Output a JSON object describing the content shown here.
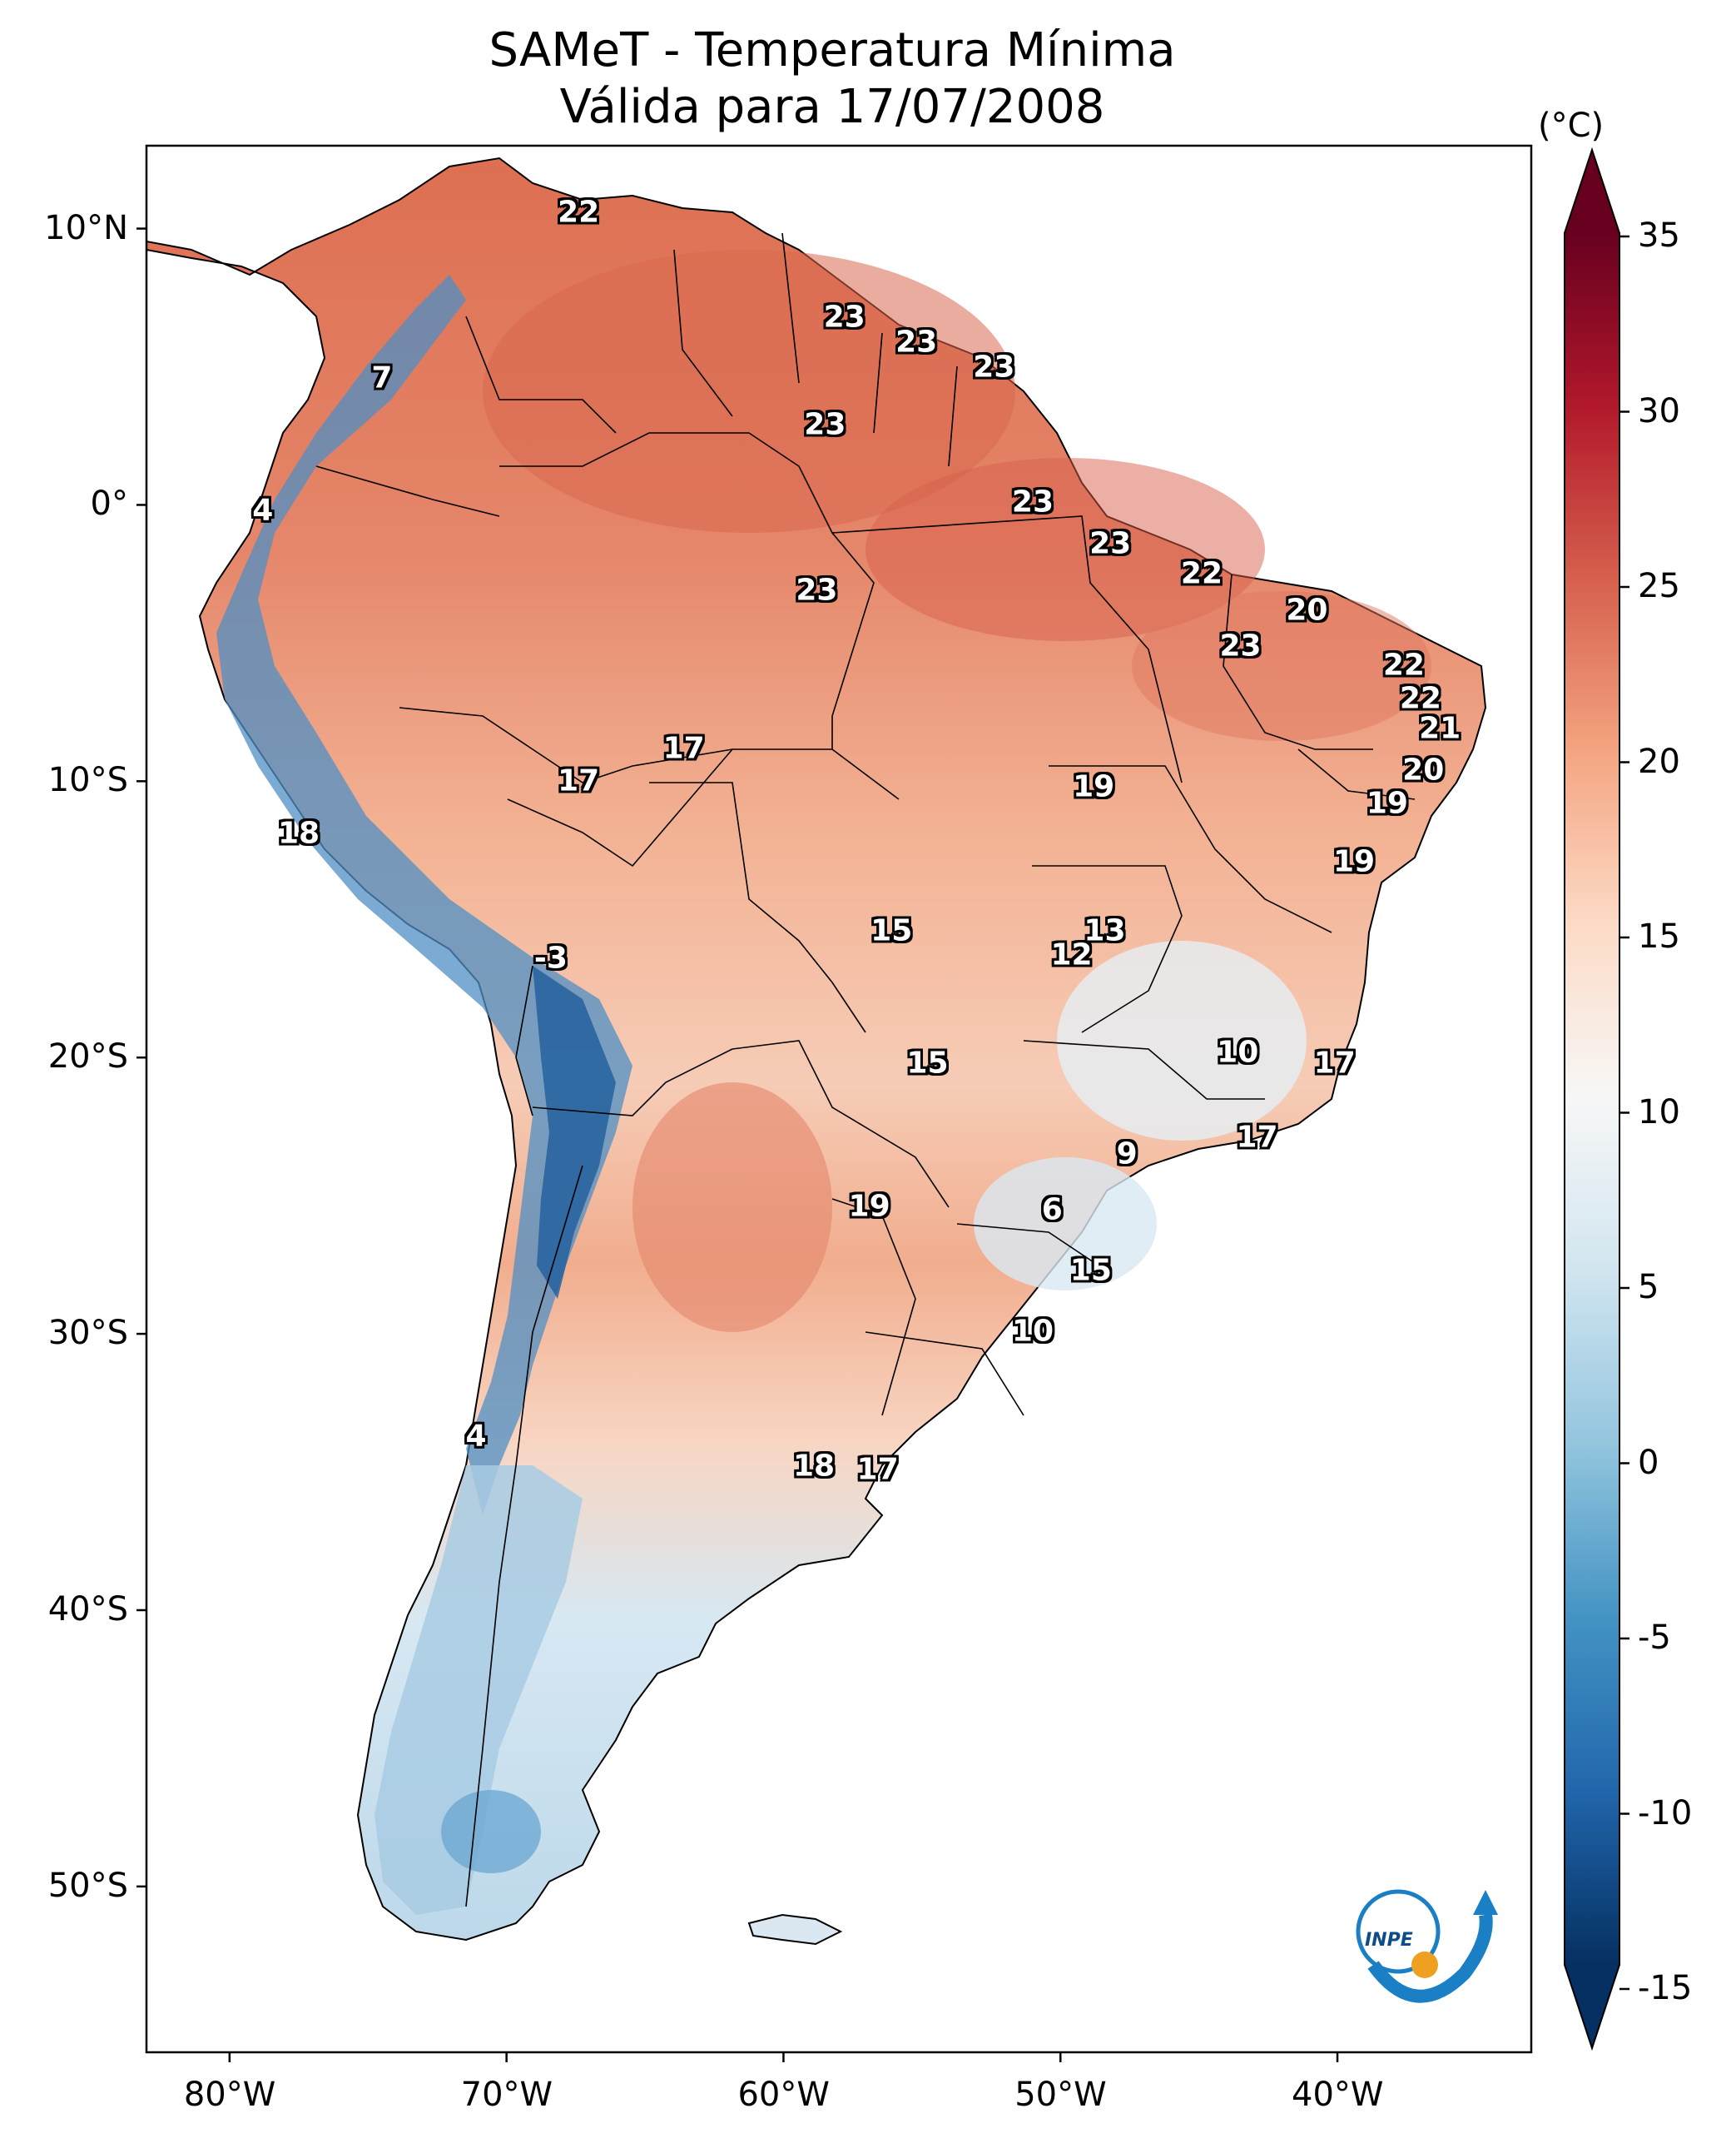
{
  "title": {
    "line1": "SAMeT - Temperatura Mínima",
    "line2": "Válida para 17/07/2008"
  },
  "map": {
    "extent_lon": [
      -83,
      -33
    ],
    "extent_lat": [
      -56,
      13
    ],
    "lat_ticks": [
      {
        "value": 10,
        "label": "10°N"
      },
      {
        "value": 0,
        "label": "0°"
      },
      {
        "value": -10,
        "label": "10°S"
      },
      {
        "value": -20,
        "label": "20°S"
      },
      {
        "value": -30,
        "label": "30°S"
      },
      {
        "value": -40,
        "label": "40°S"
      },
      {
        "value": -50,
        "label": "50°S"
      }
    ],
    "lon_ticks": [
      {
        "value": -80,
        "label": "80°W"
      },
      {
        "value": -70,
        "label": "70°W"
      },
      {
        "value": -60,
        "label": "60°W"
      },
      {
        "value": -50,
        "label": "50°W"
      },
      {
        "value": -40,
        "label": "40°W"
      }
    ],
    "temperature_labels": [
      {
        "lon": -67.4,
        "lat": 10.6,
        "label": "22"
      },
      {
        "lon": -74.5,
        "lat": 4.6,
        "label": "7"
      },
      {
        "lon": -78.8,
        "lat": -0.2,
        "label": "4"
      },
      {
        "lon": -57.8,
        "lat": 6.8,
        "label": "23"
      },
      {
        "lon": -55.2,
        "lat": 5.9,
        "label": "23"
      },
      {
        "lon": -52.4,
        "lat": 5.0,
        "label": "23"
      },
      {
        "lon": -58.5,
        "lat": 2.9,
        "label": "23"
      },
      {
        "lon": -51.0,
        "lat": 0.1,
        "label": "23"
      },
      {
        "lon": -48.2,
        "lat": -1.4,
        "label": "23"
      },
      {
        "lon": -44.9,
        "lat": -2.5,
        "label": "22"
      },
      {
        "lon": -58.8,
        "lat": -3.1,
        "label": "23"
      },
      {
        "lon": -41.1,
        "lat": -3.8,
        "label": "20"
      },
      {
        "lon": -43.5,
        "lat": -5.1,
        "label": "23"
      },
      {
        "lon": -37.6,
        "lat": -5.8,
        "label": "22"
      },
      {
        "lon": -37.0,
        "lat": -7.0,
        "label": "22"
      },
      {
        "lon": -36.3,
        "lat": -8.1,
        "label": "21"
      },
      {
        "lon": -36.9,
        "lat": -9.6,
        "label": "20"
      },
      {
        "lon": -63.6,
        "lat": -8.8,
        "label": "17"
      },
      {
        "lon": -67.4,
        "lat": -10.0,
        "label": "17"
      },
      {
        "lon": -48.8,
        "lat": -10.2,
        "label": "19"
      },
      {
        "lon": -38.2,
        "lat": -10.8,
        "label": "19"
      },
      {
        "lon": -77.5,
        "lat": -11.9,
        "label": "18"
      },
      {
        "lon": -39.4,
        "lat": -12.9,
        "label": "19"
      },
      {
        "lon": -56.1,
        "lat": -15.4,
        "label": "15"
      },
      {
        "lon": -48.4,
        "lat": -15.4,
        "label": "13"
      },
      {
        "lon": -49.6,
        "lat": -16.3,
        "label": "12"
      },
      {
        "lon": -68.4,
        "lat": -16.4,
        "label": "-3"
      },
      {
        "lon": -43.6,
        "lat": -19.8,
        "label": "10"
      },
      {
        "lon": -40.1,
        "lat": -20.2,
        "label": "17"
      },
      {
        "lon": -54.8,
        "lat": -20.2,
        "label": "15"
      },
      {
        "lon": -42.9,
        "lat": -22.9,
        "label": "17"
      },
      {
        "lon": -47.6,
        "lat": -23.5,
        "label": "9"
      },
      {
        "lon": -50.3,
        "lat": -25.5,
        "label": "6"
      },
      {
        "lon": -56.9,
        "lat": -25.4,
        "label": "19"
      },
      {
        "lon": -48.9,
        "lat": -27.7,
        "label": "15"
      },
      {
        "lon": -51.0,
        "lat": -29.9,
        "label": "10"
      },
      {
        "lon": -71.1,
        "lat": -33.7,
        "label": "4"
      },
      {
        "lon": -58.9,
        "lat": -34.8,
        "label": "18"
      },
      {
        "lon": -56.6,
        "lat": -34.9,
        "label": "17"
      }
    ]
  },
  "colorbar": {
    "unit": "(°C)",
    "range": [
      -15,
      35
    ],
    "ticks": [
      "35",
      "30",
      "25",
      "20",
      "15",
      "10",
      "5",
      "0",
      "-5",
      "-10",
      "-15"
    ],
    "colors": [
      "#053061",
      "#2166ac",
      "#4393c3",
      "#92c5de",
      "#d1e5f0",
      "#f7f7f7",
      "#fddbc7",
      "#f4a582",
      "#d6604d",
      "#b2182b",
      "#67001f"
    ]
  },
  "logo": {
    "text": "INPE",
    "primary_color": "#1a7fc4",
    "accent_color": "#f0a020"
  }
}
